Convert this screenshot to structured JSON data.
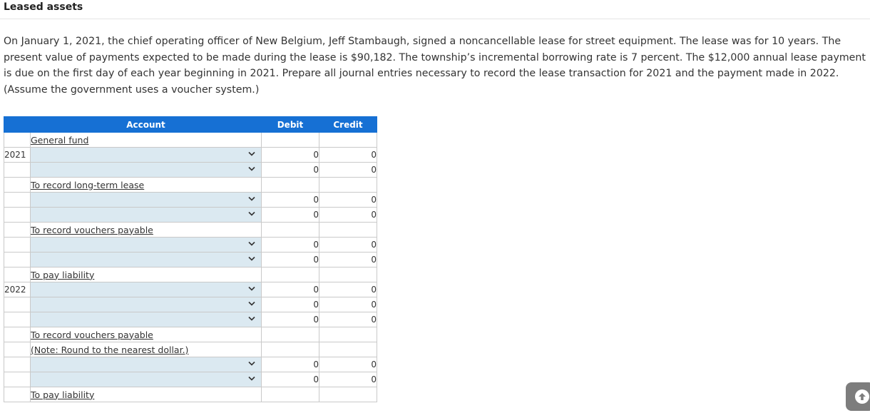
{
  "title": "Leased assets",
  "problem": {
    "paragraph": "On January 1, 2021, the chief operating officer of New Belgium, Jeff Stambaugh, signed a noncancellable lease for street equipment. The lease was for 10 years. The present value of payments expected to be made during the lease is $90,182. The township’s incremental borrowing rate is 7 percent. The $12,000 annual lease payment is due on the first day of each year beginning in 2021. Prepare all journal entries necessary to record the lease transaction for 2021 and the payment made in 2022.",
    "note": "(Assume the government uses a voucher system.)"
  },
  "table": {
    "headers": {
      "account": "Account",
      "debit": "Debit",
      "credit": "Credit"
    },
    "rows": [
      {
        "type": "label",
        "year": "",
        "text": "General fund"
      },
      {
        "type": "input",
        "year": "2021",
        "debit": "0",
        "credit": "0"
      },
      {
        "type": "input",
        "year": "",
        "debit": "0",
        "credit": "0"
      },
      {
        "type": "label",
        "year": "",
        "text": "To record long-term lease"
      },
      {
        "type": "input",
        "year": "",
        "debit": "0",
        "credit": "0"
      },
      {
        "type": "input",
        "year": "",
        "debit": "0",
        "credit": "0"
      },
      {
        "type": "label",
        "year": "",
        "text": "To record vouchers payable"
      },
      {
        "type": "input",
        "year": "",
        "debit": "0",
        "credit": "0"
      },
      {
        "type": "input",
        "year": "",
        "debit": "0",
        "credit": "0"
      },
      {
        "type": "label",
        "year": "",
        "text": "To pay liability"
      },
      {
        "type": "input",
        "year": "2022",
        "debit": "0",
        "credit": "0"
      },
      {
        "type": "input",
        "year": "",
        "debit": "0",
        "credit": "0"
      },
      {
        "type": "input",
        "year": "",
        "debit": "0",
        "credit": "0"
      },
      {
        "type": "label",
        "year": "",
        "text": "To record vouchers payable"
      },
      {
        "type": "label",
        "year": "",
        "text": "(Note: Round to the nearest dollar.)"
      },
      {
        "type": "input",
        "year": "",
        "debit": "0",
        "credit": "0"
      },
      {
        "type": "input",
        "year": "",
        "debit": "0",
        "credit": "0"
      },
      {
        "type": "label",
        "year": "",
        "text": "To pay liability"
      }
    ]
  },
  "icons": {
    "dropdown": "chevron-down-icon",
    "scroll_top": "arrow-up-circle-icon"
  },
  "colors": {
    "header_bg": "#1670d4",
    "input_bg": "#dbe9f1",
    "scroll_button_bg": "#7d7d7d"
  }
}
